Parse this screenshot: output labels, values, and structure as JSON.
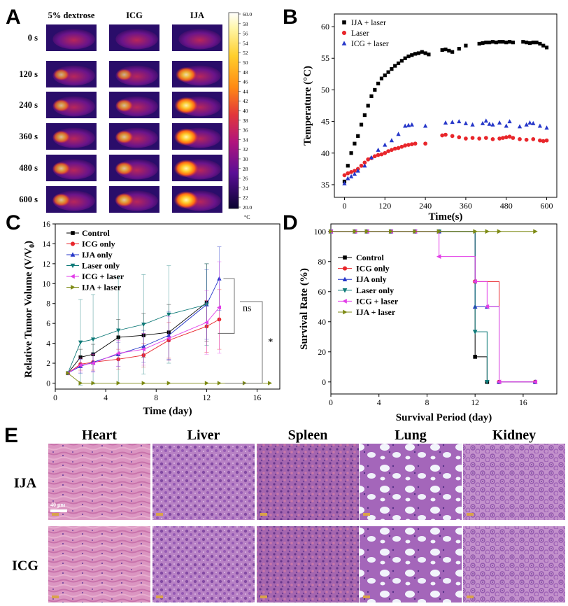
{
  "panels": {
    "A": {
      "label": "A",
      "columns": [
        "5% dextrose",
        "ICG",
        "IJA"
      ],
      "rows": [
        "0 s",
        "120 s",
        "240 s",
        "360 s",
        "480 s",
        "600 s"
      ],
      "hot_intensity": [
        [
          0.0,
          0.0,
          0.0
        ],
        [
          0.35,
          0.35,
          0.72
        ],
        [
          0.42,
          0.45,
          0.88
        ],
        [
          0.45,
          0.5,
          0.92
        ],
        [
          0.48,
          0.52,
          0.95
        ],
        [
          0.48,
          0.55,
          0.95
        ]
      ],
      "colorbar": {
        "ticks": [
          "60.0",
          "58",
          "56",
          "54",
          "52",
          "50",
          "48",
          "46",
          "44",
          "42",
          "40",
          "38",
          "36",
          "34",
          "32",
          "30",
          "28",
          "26",
          "24",
          "22",
          "20.0"
        ],
        "unit": "°C"
      }
    },
    "B": {
      "label": "B",
      "chart_data": {
        "type": "scatter",
        "xlabel": "Time(s)",
        "ylabel": "Temperature (°C)",
        "xlim": [
          -30,
          630
        ],
        "ylim": [
          33,
          62
        ],
        "xticks": [
          "0",
          "120",
          "240",
          "360",
          "480",
          "600"
        ],
        "yticks": [
          "35",
          "40",
          "45",
          "50",
          "55",
          "60"
        ],
        "legend": "top-left",
        "series": [
          {
            "name": "IJA + laser",
            "marker": "square",
            "color": "#000000",
            "x": [
              0,
              10,
              20,
              30,
              40,
              50,
              60,
              70,
              80,
              90,
              100,
              110,
              120,
              130,
              140,
              150,
              160,
              170,
              180,
              190,
              200,
              210,
              220,
              230,
              240,
              250,
              290,
              300,
              310,
              320,
              340,
              360,
              400,
              410,
              420,
              430,
              440,
              450,
              460,
              470,
              480,
              490,
              500,
              530,
              540,
              550,
              560,
              570,
              580,
              590,
              600
            ],
            "y": [
              35.5,
              38,
              40,
              41.5,
              42.7,
              44.5,
              46,
              47.5,
              49,
              50,
              51,
              51.8,
              52.3,
              52.8,
              53.3,
              53.8,
              54.2,
              54.6,
              55,
              55.3,
              55.5,
              55.7,
              55.8,
              56,
              55.8,
              55.6,
              56.3,
              56.4,
              56.2,
              56,
              56.5,
              57,
              57.3,
              57.4,
              57.5,
              57.5,
              57.6,
              57.5,
              57.6,
              57.6,
              57.5,
              57.6,
              57.5,
              57.6,
              57.5,
              57.4,
              57.5,
              57.5,
              57.3,
              57,
              56.7
            ]
          },
          {
            "name": "Laser",
            "marker": "circle",
            "color": "#e8262b",
            "x": [
              0,
              10,
              20,
              30,
              40,
              50,
              60,
              70,
              80,
              90,
              100,
              110,
              120,
              130,
              140,
              150,
              160,
              170,
              180,
              190,
              200,
              210,
              240,
              290,
              300,
              320,
              340,
              360,
              380,
              400,
              420,
              440,
              460,
              470,
              480,
              490,
              500,
              520,
              540,
              560,
              580,
              590,
              600
            ],
            "y": [
              36.5,
              36.8,
              37,
              37.2,
              37.5,
              38,
              38.5,
              39,
              39.2,
              39.5,
              39.7,
              39.8,
              40,
              40.3,
              40.5,
              40.7,
              40.8,
              41,
              41.2,
              41.3,
              41.4,
              41.5,
              41.5,
              42.8,
              42.9,
              42.7,
              42.5,
              42.3,
              42.4,
              42.3,
              42.4,
              42.2,
              42.3,
              42.4,
              42.5,
              42.6,
              42.4,
              42.2,
              42.1,
              42.2,
              42,
              41.9,
              42
            ]
          },
          {
            "name": "ICG + laser",
            "marker": "triangle",
            "color": "#2637c9",
            "x": [
              0,
              10,
              20,
              30,
              40,
              60,
              80,
              100,
              120,
              140,
              160,
              180,
              190,
              200,
              240,
              300,
              320,
              340,
              360,
              380,
              410,
              420,
              430,
              440,
              460,
              480,
              490,
              520,
              540,
              550,
              560,
              580,
              600
            ],
            "y": [
              35.2,
              36,
              36.3,
              36.7,
              37.2,
              38,
              39.3,
              40.5,
              41.3,
              42,
              43,
              44.3,
              44.4,
              44.5,
              44.3,
              44.8,
              44.9,
              45,
              44.7,
              44.5,
              44.7,
              45.1,
              44.6,
              44.5,
              44.8,
              44.3,
              45,
              44.2,
              44.5,
              44.8,
              44.7,
              44.3,
              44
            ]
          }
        ]
      }
    },
    "C": {
      "label": "C",
      "chart_data": {
        "type": "line",
        "xlabel": "Time (day)",
        "ylabel": "Relative Tumor Volume (V/V0)",
        "ylabel_main": "Relative Tumor Volume (V/V",
        "ylabel_sub": "0",
        "ylabel_end": ")",
        "xlim": [
          0,
          17.8
        ],
        "ylim": [
          -0.6,
          16
        ],
        "xticks": [
          "0",
          "4",
          "8",
          "12",
          "16"
        ],
        "xtick_values": [
          0,
          4,
          8,
          12,
          16
        ],
        "yticks": [
          "0",
          "2",
          "4",
          "6",
          "8",
          "10",
          "12",
          "14",
          "16"
        ],
        "legend": "top-left",
        "annotations": {
          "ns": "ns",
          "star": "*"
        },
        "series": [
          {
            "name": "Control",
            "marker": "square",
            "color": "#000000",
            "x": [
              1,
              2,
              3,
              5,
              7,
              9,
              12
            ],
            "y": [
              1,
              2.6,
              2.9,
              4.6,
              4.8,
              5.1,
              8.1
            ],
            "err": [
              0,
              0.8,
              1.0,
              1.8,
              2.2,
              2.8,
              3.9
            ]
          },
          {
            "name": "ICG only",
            "marker": "circle",
            "color": "#e8262b",
            "x": [
              1,
              2,
              3,
              5,
              7,
              9,
              12,
              13
            ],
            "y": [
              1,
              1.9,
              2.1,
              2.4,
              2.8,
              4.3,
              5.7,
              6.4
            ],
            "err": [
              0,
              0.6,
              0.8,
              1.0,
              1.2,
              1.8,
              2.6,
              3.0
            ]
          },
          {
            "name": "IJA only",
            "marker": "triangle",
            "color": "#2637c9",
            "x": [
              1,
              2,
              3,
              5,
              7,
              9,
              12,
              13
            ],
            "y": [
              1,
              1.7,
              2.1,
              2.9,
              3.7,
              4.8,
              7.9,
              10.5
            ],
            "err": [
              0,
              0.7,
              0.9,
              1.2,
              1.6,
              2.4,
              3.5,
              3.2
            ]
          },
          {
            "name": "Laser only",
            "marker": "tri-down",
            "color": "#0f7a78",
            "x": [
              1,
              2,
              3,
              5,
              7,
              9,
              12
            ],
            "y": [
              1,
              4.1,
              4.4,
              5.3,
              5.9,
              6.9,
              7.9
            ],
            "err": [
              0,
              4.3,
              4.5,
              5.3,
              5.0,
              4.9,
              4.1
            ]
          },
          {
            "name": "ICG + laser",
            "marker": "tri-left",
            "color": "#e23ee8",
            "x": [
              1,
              2,
              3,
              5,
              7,
              9,
              12,
              13
            ],
            "y": [
              1,
              1.8,
              2.0,
              3.0,
              3.4,
              4.5,
              6.1,
              7.6
            ],
            "err": [
              0,
              0.7,
              0.9,
              1.3,
              1.6,
              2.2,
              3.2,
              4.6
            ]
          },
          {
            "name": "IJA + laser",
            "marker": "tri-right",
            "color": "#7d8a14",
            "x": [
              1,
              2,
              3,
              5,
              7,
              9,
              12,
              13,
              15,
              17
            ],
            "y": [
              1,
              0,
              0,
              0,
              0,
              0,
              0,
              0,
              0,
              0
            ],
            "err": [
              0,
              0,
              0,
              0,
              0,
              0,
              0,
              0,
              0,
              0
            ]
          }
        ]
      }
    },
    "D": {
      "label": "D",
      "chart_data": {
        "type": "line",
        "step": true,
        "xlabel": "Survival Period (day)",
        "ylabel": "Survival Rate (%)",
        "xlim": [
          0,
          18.8
        ],
        "ylim": [
          -8,
          105
        ],
        "xticks": [
          "0",
          "4",
          "8",
          "12",
          "16"
        ],
        "xtick_values": [
          0,
          4,
          8,
          12,
          16
        ],
        "yticks": [
          "0",
          "20",
          "40",
          "60",
          "80",
          "100"
        ],
        "legend": "left",
        "series": [
          {
            "name": "Control",
            "marker": "square",
            "color": "#000000",
            "x": [
              0,
              2,
              3,
              5,
              7,
              9,
              12,
              12,
              13
            ],
            "y": [
              100,
              100,
              100,
              100,
              100,
              100,
              100,
              16.7,
              0
            ]
          },
          {
            "name": "ICG only",
            "marker": "circle",
            "color": "#e8262b",
            "x": [
              0,
              2,
              3,
              5,
              7,
              9,
              12,
              12,
              14,
              17
            ],
            "y": [
              100,
              100,
              100,
              100,
              100,
              100,
              100,
              66.7,
              0,
              0
            ]
          },
          {
            "name": "IJA only",
            "marker": "triangle",
            "color": "#2637c9",
            "x": [
              0,
              2,
              3,
              5,
              7,
              9,
              12,
              12,
              13,
              14,
              17
            ],
            "y": [
              100,
              100,
              100,
              100,
              100,
              100,
              100,
              50,
              50,
              0,
              0
            ]
          },
          {
            "name": "Laser only",
            "marker": "tri-down",
            "color": "#0f7a78",
            "x": [
              0,
              2,
              3,
              5,
              7,
              9,
              12,
              12,
              13
            ],
            "y": [
              100,
              100,
              100,
              100,
              100,
              100,
              100,
              33.3,
              0
            ]
          },
          {
            "name": "ICG + laser",
            "marker": "tri-left",
            "color": "#e23ee8",
            "x": [
              0,
              2,
              3,
              5,
              7,
              9,
              9,
              12,
              12,
              13,
              14,
              17
            ],
            "y": [
              100,
              100,
              100,
              100,
              100,
              100,
              83.3,
              83.3,
              66.7,
              50,
              0,
              0
            ]
          },
          {
            "name": "IJA + laser",
            "marker": "tri-right",
            "color": "#7d8a14",
            "x": [
              0,
              2,
              3,
              5,
              7,
              9,
              12,
              13,
              14,
              17
            ],
            "y": [
              100,
              100,
              100,
              100,
              100,
              100,
              100,
              100,
              100,
              100
            ]
          }
        ]
      }
    },
    "E": {
      "label": "E",
      "organs": [
        "Heart",
        "Liver",
        "Spleen",
        "Lung",
        "Kidney"
      ],
      "rows": [
        "IJA",
        "ICG"
      ],
      "scale_bar": "40 μm"
    }
  }
}
